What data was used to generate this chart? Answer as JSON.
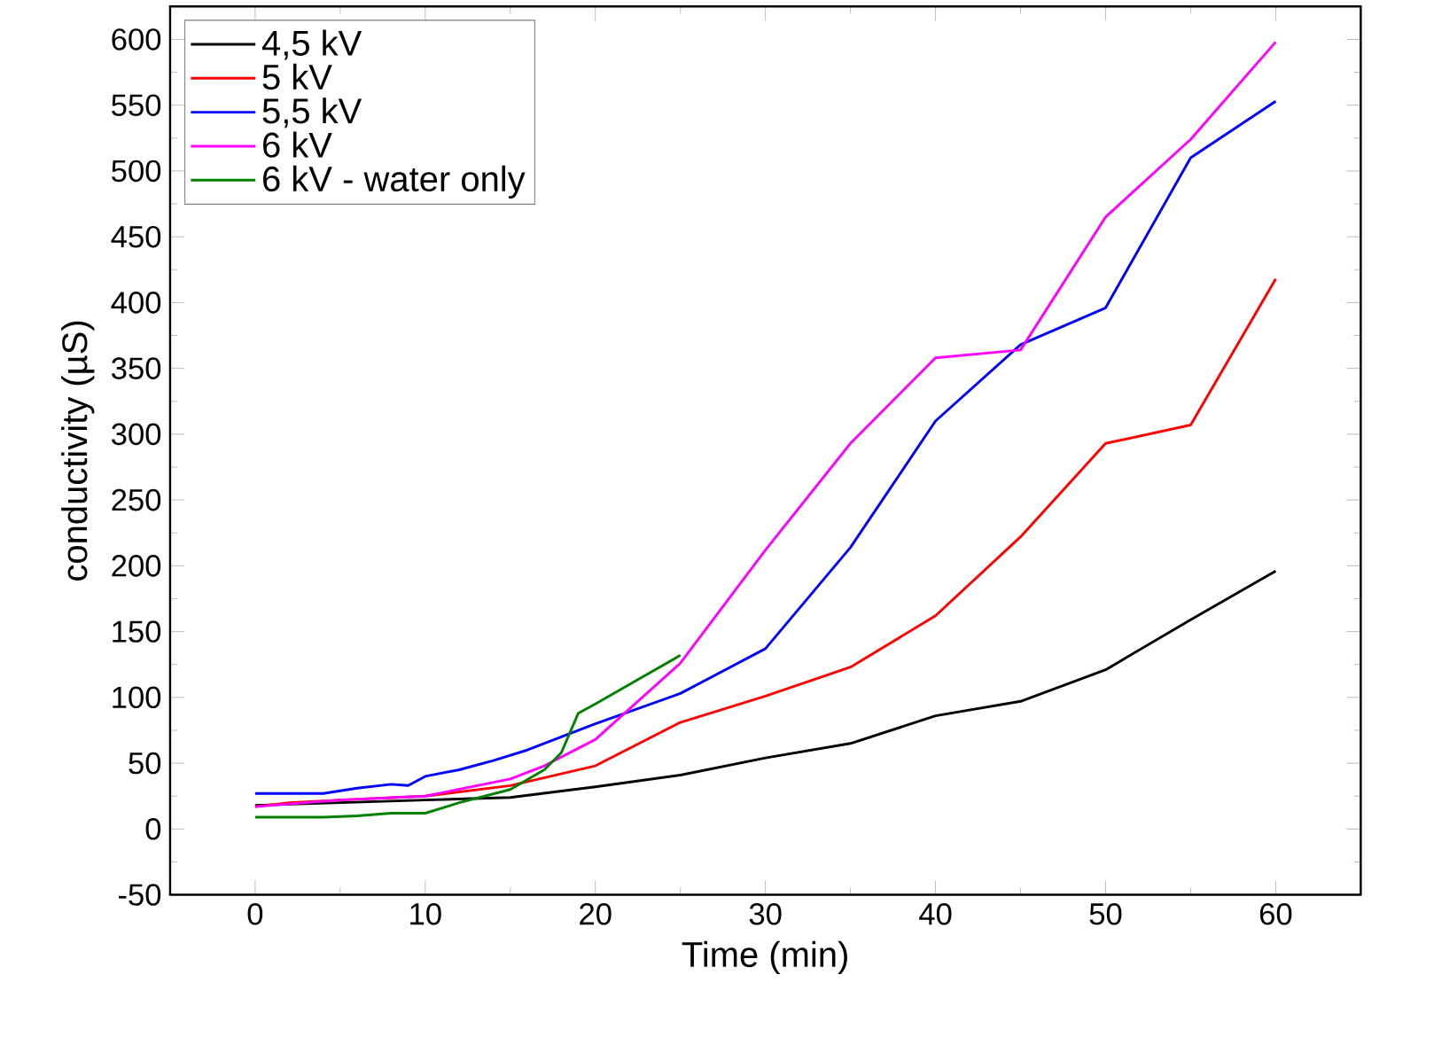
{
  "chart_data": {
    "type": "line",
    "xlabel": "Time (min)",
    "ylabel": "conductivity (µS)",
    "xlim": [
      -5,
      65
    ],
    "ylim": [
      -50,
      625
    ],
    "xticks": [
      0,
      10,
      20,
      30,
      40,
      50,
      60
    ],
    "yticks": [
      -50,
      0,
      50,
      100,
      150,
      200,
      250,
      300,
      350,
      400,
      450,
      500,
      550,
      600
    ],
    "grid": false,
    "legend": "top left",
    "marker": "none",
    "line_style": "solid",
    "series": [
      {
        "name": "4,5 kV",
        "color": "#000000",
        "x": [
          0,
          5,
          10,
          15,
          20,
          25,
          30,
          35,
          40,
          45,
          50,
          55,
          60
        ],
        "values": [
          18,
          20,
          22,
          24,
          32,
          41,
          54,
          65,
          86,
          97,
          121,
          159,
          196
        ]
      },
      {
        "name": "5 kV",
        "color": "#ff0000",
        "x": [
          0,
          2,
          5,
          10,
          15,
          20,
          25,
          30,
          35,
          40,
          45,
          50,
          55,
          60
        ],
        "values": [
          17,
          20,
          22,
          25,
          33,
          48,
          81,
          101,
          123,
          162,
          222,
          293,
          307,
          418
        ]
      },
      {
        "name": "5,5 kV",
        "color": "#0000ff",
        "x": [
          0,
          4,
          6,
          8,
          9,
          10,
          12,
          14,
          16,
          18,
          20,
          25,
          30,
          35,
          40,
          45,
          50,
          55,
          60
        ],
        "values": [
          27,
          27,
          31,
          34,
          33,
          40,
          45,
          52,
          60,
          70,
          80,
          103,
          137,
          214,
          310,
          368,
          396,
          510,
          553
        ]
      },
      {
        "name": "6  kV",
        "color": "#ff00ff",
        "x": [
          0,
          5,
          10,
          15,
          17,
          20,
          25,
          30,
          35,
          40,
          45,
          50,
          55,
          60
        ],
        "values": [
          17,
          22,
          25,
          38,
          48,
          68,
          126,
          212,
          293,
          358,
          364,
          465,
          524,
          598
        ]
      },
      {
        "name": "6  kV - water only",
        "color": "#008000",
        "x": [
          0,
          2,
          4,
          6,
          8,
          10,
          12,
          15,
          17,
          18,
          19,
          20,
          25
        ],
        "values": [
          9,
          9,
          9,
          10,
          12,
          12,
          20,
          30,
          45,
          58,
          88,
          95,
          132
        ]
      }
    ]
  }
}
